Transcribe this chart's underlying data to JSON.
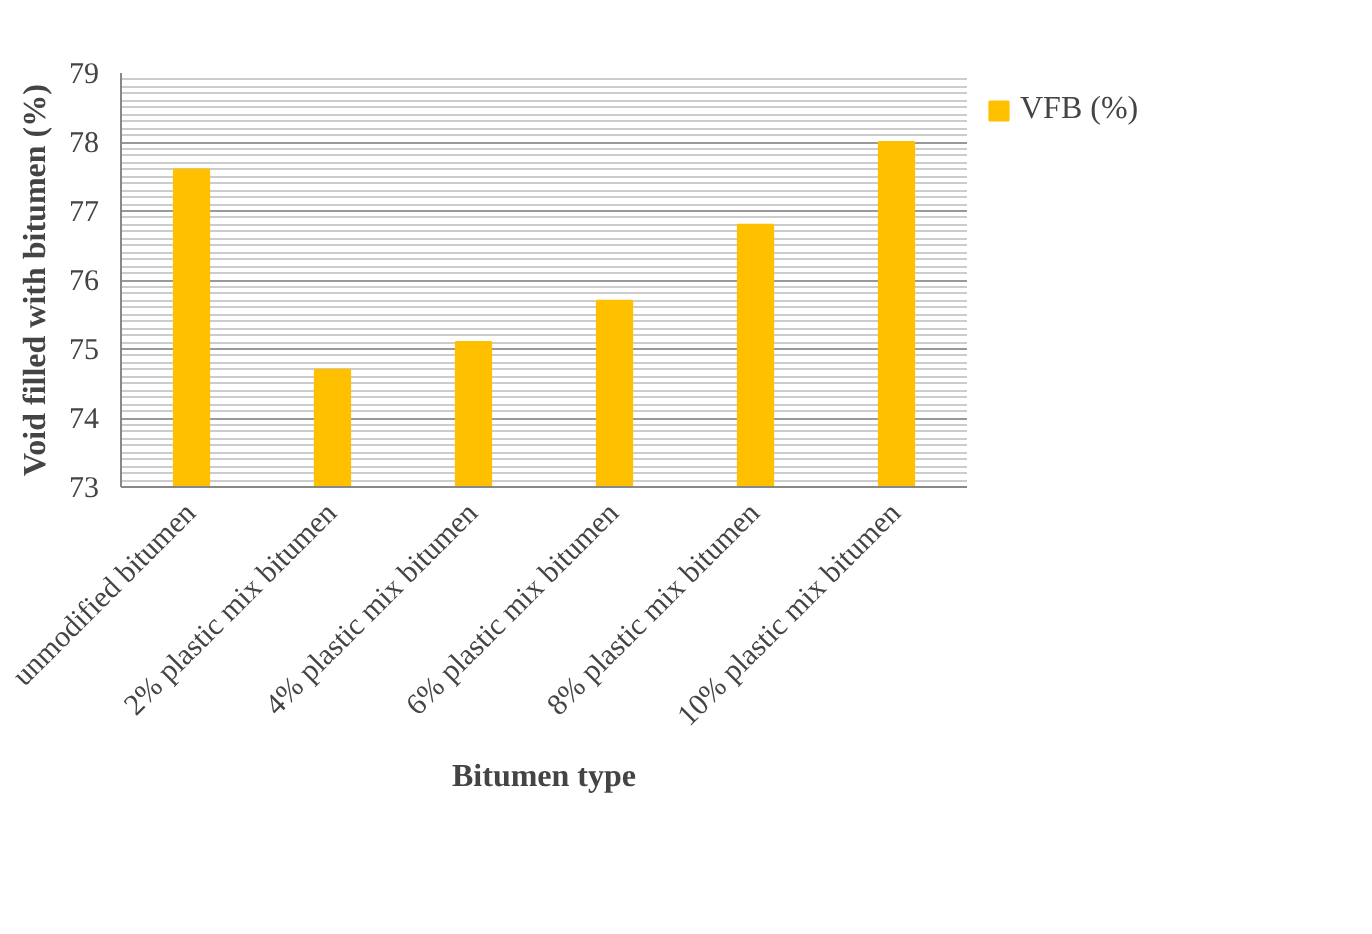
{
  "chart_data": {
    "type": "bar",
    "xlabel": "Bitumen type",
    "ylabel": "Void filled with bitumen (%)",
    "categories": [
      "unmodified bitumen",
      "2% plastic mix bitumen",
      "4% plastic mix bitumen",
      "6% plastic mix bitumen",
      "8% plastic mix bitumen",
      "10% plastic mix bitumen"
    ],
    "series": [
      {
        "name": "VFB (%)",
        "color": "#ffc000",
        "values": [
          77.6,
          74.7,
          75.1,
          75.7,
          76.8,
          78.0
        ]
      }
    ],
    "ylim": [
      73,
      79
    ],
    "yticks": [
      73,
      74,
      75,
      76,
      77,
      78,
      79
    ],
    "grid": "y",
    "legend": "right"
  }
}
